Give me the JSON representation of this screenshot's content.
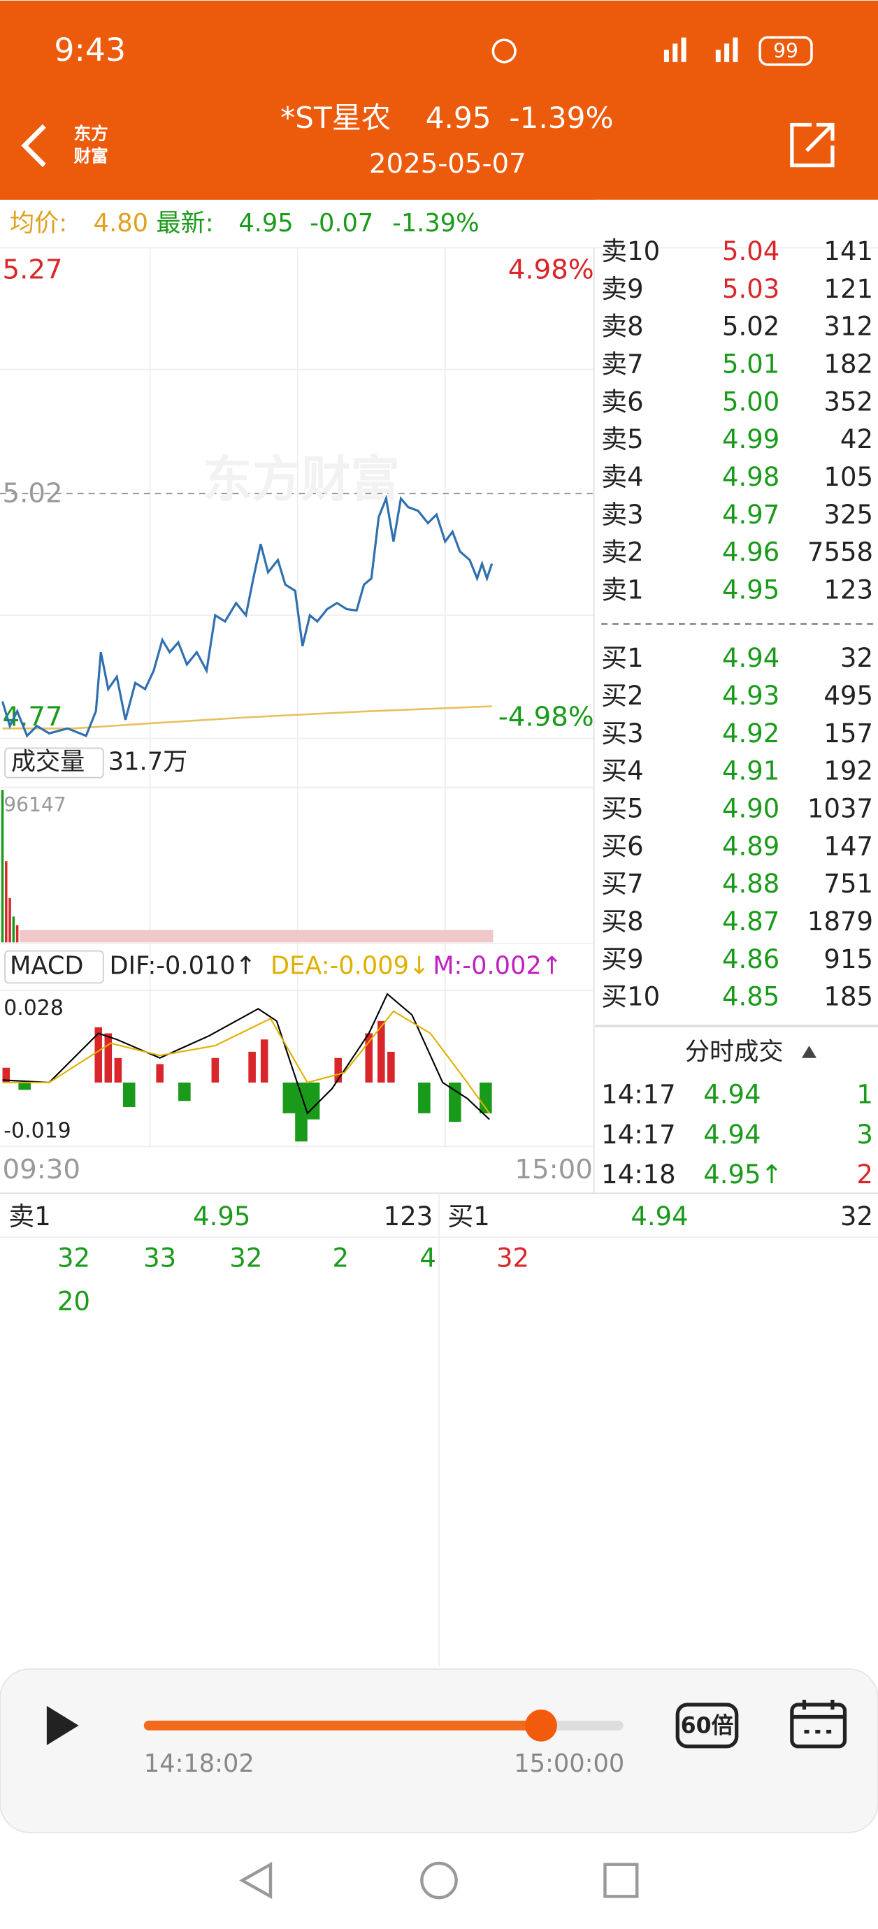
{
  "status_bar": {
    "time": "9:43",
    "battery": "99"
  },
  "header": {
    "logo": [
      "东方",
      "财富"
    ],
    "title": "*ST星农",
    "price": "4.95",
    "change": "-1.39%",
    "date": "2025-05-07"
  },
  "info_bar": {
    "avg_label": "均价:",
    "avg": "4.80",
    "latest_label": "最新:",
    "latest": "4.95",
    "change": "-0.07",
    "pct": "-1.39%"
  },
  "chart": {
    "watermark": "东方财富",
    "ymax": "5.27",
    "ymax_pct": "4.98%",
    "prev": "5.02",
    "ymin": "4.77",
    "ymin_pct": "-4.98%",
    "volume_label": "成交量",
    "volume": "31.7万",
    "vol_max": "96147",
    "macd_label": "MACD",
    "dif": "DIF:-0.010↑",
    "dea": "DEA:-0.009↓",
    "m": "M:-0.002↑",
    "macd_max": "0.028",
    "macd_min": "-0.019",
    "time_start": "09:30",
    "time_end": "15:00"
  },
  "order_book": {
    "asks": [
      [
        "卖10",
        "5.04",
        "141"
      ],
      [
        "卖9",
        "5.03",
        "121"
      ],
      [
        "卖8",
        "5.02",
        "312"
      ],
      [
        "卖7",
        "5.01",
        "182"
      ],
      [
        "卖6",
        "5.00",
        "352"
      ],
      [
        "卖5",
        "4.99",
        "42"
      ],
      [
        "卖4",
        "4.98",
        "105"
      ],
      [
        "卖3",
        "4.97",
        "325"
      ],
      [
        "卖2",
        "4.96",
        "7558"
      ],
      [
        "卖1",
        "4.95",
        "123"
      ]
    ],
    "bids": [
      [
        "买1",
        "4.94",
        "32"
      ],
      [
        "买2",
        "4.93",
        "495"
      ],
      [
        "买3",
        "4.92",
        "157"
      ],
      [
        "买4",
        "4.91",
        "192"
      ],
      [
        "买5",
        "4.90",
        "1037"
      ],
      [
        "买6",
        "4.89",
        "147"
      ],
      [
        "买7",
        "4.88",
        "751"
      ],
      [
        "买8",
        "4.87",
        "1879"
      ],
      [
        "买9",
        "4.86",
        "915"
      ],
      [
        "买10",
        "4.85",
        "185"
      ]
    ]
  },
  "trades": {
    "title": "分时成交",
    "rows": [
      [
        "14:17",
        "4.94",
        "1"
      ],
      [
        "14:17",
        "4.94",
        "3"
      ],
      [
        "14:18",
        "4.95↑",
        "2"
      ]
    ]
  },
  "queue": {
    "sell": {
      "label": "卖1",
      "price": "4.95",
      "volume": "123",
      "items": [
        "32",
        "33",
        "32",
        "2",
        "4",
        "20"
      ]
    },
    "buy": {
      "label": "买1",
      "price": "4.94",
      "volume": "32",
      "items": [
        "32"
      ]
    }
  },
  "player": {
    "current": "14:18:02",
    "end": "15:00:00",
    "speed": "60倍"
  }
}
